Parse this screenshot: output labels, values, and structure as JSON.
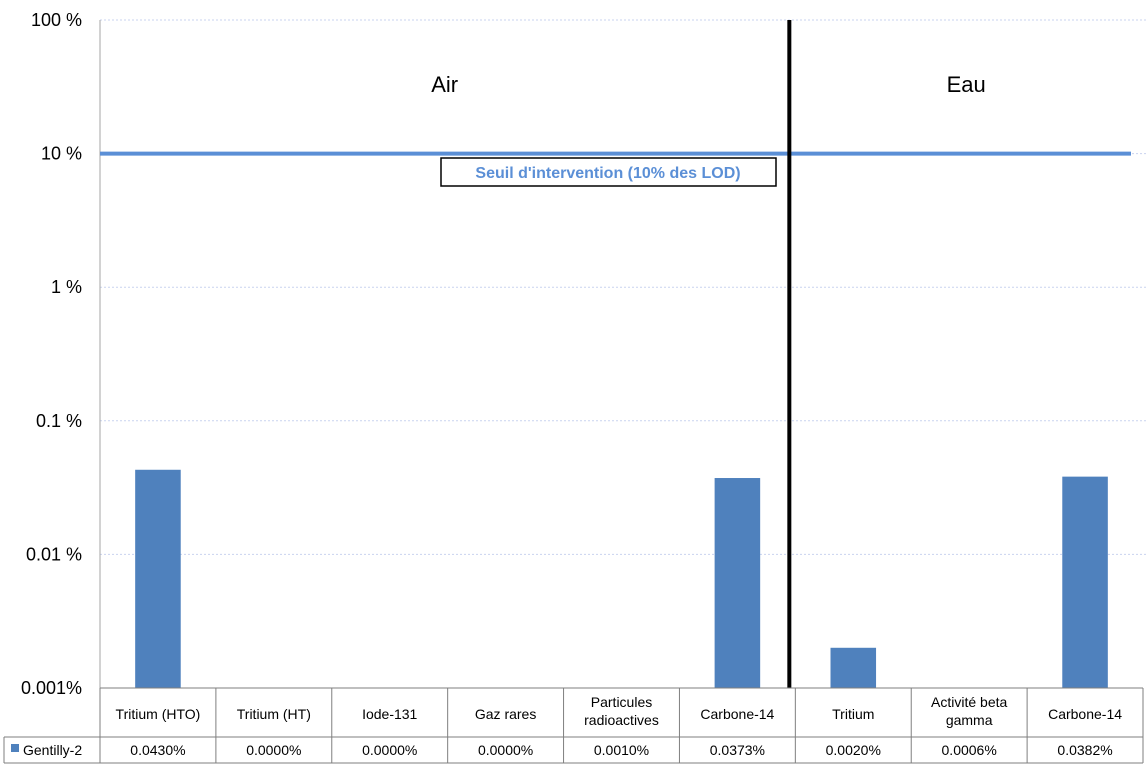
{
  "chart_data": {
    "type": "bar",
    "y_scale": "log",
    "ylim": [
      0.001,
      100
    ],
    "y_ticks": [
      {
        "value": 100,
        "label": "100 %"
      },
      {
        "value": 10,
        "label": "10 %"
      },
      {
        "value": 1,
        "label": "1 %"
      },
      {
        "value": 0.1,
        "label": "0.1 %"
      },
      {
        "value": 0.01,
        "label": "0.01 %"
      },
      {
        "value": 0.001,
        "label": "0.001%"
      }
    ],
    "grid": true,
    "categories": [
      {
        "label": [
          "Tritium (HTO)"
        ]
      },
      {
        "label": [
          "Tritium (HT)"
        ]
      },
      {
        "label": [
          "Iode-131"
        ]
      },
      {
        "label": [
          "Gaz rares"
        ]
      },
      {
        "label": [
          "Particules",
          "radioactives"
        ]
      },
      {
        "label": [
          "Carbone-14"
        ]
      },
      {
        "label": [
          "Tritium"
        ]
      },
      {
        "label": [
          "Activité beta",
          "gamma"
        ]
      },
      {
        "label": [
          "Carbone-14"
        ]
      }
    ],
    "series": [
      {
        "name": "Gentilly-2",
        "color": "#4F81BD",
        "values": [
          0.043,
          0.0,
          0.0,
          0.0,
          0.001,
          0.0373,
          0.002,
          0.0006,
          0.0382
        ],
        "value_labels": [
          "0.0430%",
          "0.0000%",
          "0.0000%",
          "0.0000%",
          "0.0010%",
          "0.0373%",
          "0.0020%",
          "0.0006%",
          "0.0382%"
        ]
      }
    ],
    "regions": [
      {
        "label": "Air",
        "first_category": 0,
        "last_category": 5
      },
      {
        "label": "Eau",
        "first_category": 6,
        "last_category": 8
      }
    ],
    "threshold": {
      "value": 10,
      "label": "Seuil d'intervention (10% des LOD)",
      "color": "#5B8FD6"
    },
    "legend_placement": "bottom-left (data table)"
  }
}
